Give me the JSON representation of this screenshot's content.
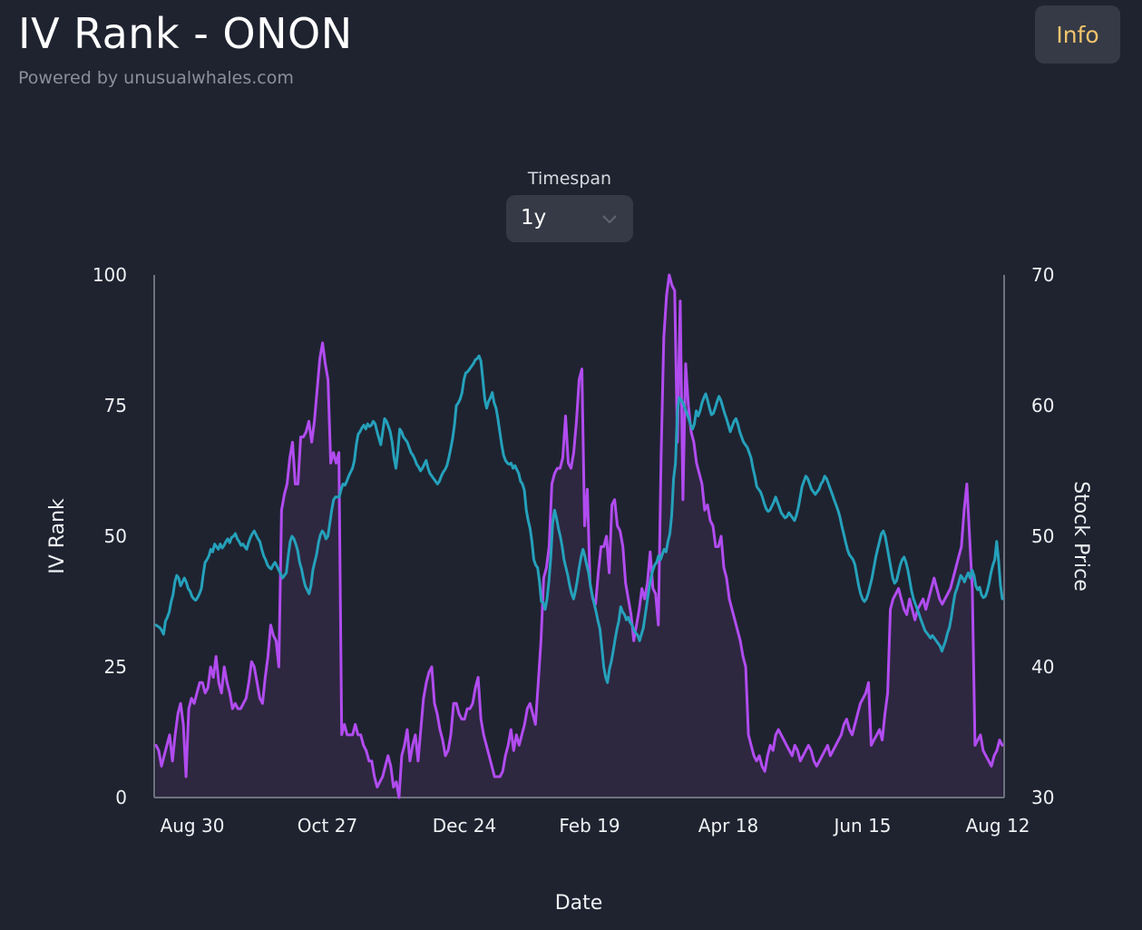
{
  "header": {
    "title": "IV Rank - ONON",
    "subtitle": "Powered by unusualwhales.com",
    "info_label": "Info"
  },
  "controls": {
    "timespan_label": "Timespan",
    "timespan_value": "1y",
    "timespan_icon": "chevron-down-icon"
  },
  "colors": {
    "background": "#1f2330",
    "iv_rank_line": "#b14cf0",
    "iv_rank_fill": "#2e2740",
    "stock_price_line": "#25a1bb",
    "info_text": "#f2c46d"
  },
  "chart_data": {
    "type": "line",
    "xlabel": "Date",
    "ylabel": "IV Rank",
    "y2label": "Stock Price",
    "ylim": [
      0,
      100
    ],
    "y2lim": [
      30,
      70
    ],
    "yticks": [
      "100",
      "75",
      "50",
      "25",
      "0"
    ],
    "y2ticks": [
      "70",
      "60",
      "50",
      "40",
      "30"
    ],
    "xticks": [
      "Aug 30",
      "Oct 27",
      "Dec 24",
      "Feb 19",
      "Apr 18",
      "Jun 15",
      "Aug 12"
    ],
    "grid": false,
    "series": [
      {
        "axis": "left",
        "color": "#b14cf0",
        "fill": true,
        "values": [
          10,
          9,
          6,
          8,
          10,
          12,
          7,
          12,
          16,
          18,
          14,
          4,
          17,
          19,
          18,
          20,
          22,
          22,
          20,
          21,
          25,
          23,
          27,
          22,
          20,
          25,
          22,
          20,
          17,
          18,
          17,
          17,
          18,
          19,
          22,
          26,
          25,
          22,
          19,
          18,
          23,
          27,
          33,
          31,
          30,
          25,
          55,
          58,
          60,
          65,
          68,
          60,
          60,
          69,
          69,
          70,
          72,
          68,
          72,
          78,
          84,
          87,
          83,
          80,
          64,
          66,
          64,
          66,
          12,
          14,
          12,
          12,
          12,
          14,
          12,
          12,
          10,
          9,
          7,
          7,
          4,
          2,
          3,
          4,
          6,
          8,
          6,
          2,
          3,
          0,
          8,
          10,
          13,
          7,
          10,
          12,
          7,
          13,
          19,
          22,
          24,
          25,
          18,
          16,
          13,
          11,
          8,
          9,
          12,
          18,
          18,
          16,
          15,
          15,
          17,
          17,
          18,
          21,
          23,
          15,
          12,
          10,
          8,
          6,
          4,
          4,
          4,
          5,
          8,
          10,
          13,
          9,
          12,
          10,
          12,
          14,
          17,
          18,
          16,
          14,
          22,
          30,
          42,
          44,
          48,
          60,
          62,
          63,
          63,
          65,
          73,
          64,
          63,
          66,
          72,
          80,
          82,
          52,
          59,
          41,
          38,
          37,
          43,
          48,
          48,
          50,
          43,
          56,
          57,
          52,
          51,
          48,
          41,
          38,
          35,
          30,
          33,
          36,
          40,
          38,
          41,
          47,
          40,
          39,
          33,
          65,
          88,
          96,
          100,
          98,
          97,
          68,
          95,
          57,
          83,
          75,
          70,
          68,
          64,
          62,
          60,
          55,
          56,
          53,
          52,
          48,
          48,
          50,
          44,
          42,
          38,
          36,
          34,
          32,
          30,
          27,
          25,
          12,
          10,
          8,
          7,
          8,
          6,
          5,
          8,
          10,
          9,
          12,
          13,
          12,
          11,
          10,
          9,
          8,
          10,
          9,
          7,
          8,
          9,
          10,
          9,
          7,
          6,
          7,
          8,
          9,
          10,
          8,
          9,
          10,
          11,
          12,
          14,
          15,
          13,
          12,
          14,
          16,
          18,
          19,
          20,
          22,
          10,
          11,
          12,
          13,
          11,
          16,
          20,
          36,
          38,
          39,
          40,
          38,
          36,
          35,
          38,
          36,
          34,
          36,
          37,
          38,
          36,
          38,
          40,
          42,
          40,
          38,
          37,
          38,
          39,
          40,
          42,
          44,
          46,
          48,
          55,
          60,
          50,
          40,
          10,
          11,
          12,
          9,
          8,
          7,
          6,
          8,
          9,
          11,
          10
        ]
      },
      {
        "axis": "right",
        "color": "#25a1bb",
        "fill": false,
        "values": [
          43.2,
          43.1,
          43.0,
          42.8,
          42.5,
          43.5,
          43.8,
          44.2,
          45.0,
          45.5,
          46.5,
          47.0,
          46.8,
          46.2,
          46.5,
          46.8,
          46.5,
          46.0,
          45.8,
          45.4,
          45.2,
          45.1,
          45.3,
          45.6,
          46.0,
          47.1,
          48.0,
          48.2,
          48.5,
          49.0,
          48.8,
          49.4,
          49.2,
          49.0,
          49.4,
          49.1,
          49.3,
          49.6,
          49.8,
          49.5,
          49.9,
          50.0,
          50.2,
          49.8,
          49.6,
          49.3,
          49.4,
          49.2,
          49.0,
          49.5,
          49.9,
          50.2,
          50.4,
          50.1,
          49.8,
          49.6,
          49.0,
          48.5,
          48.2,
          47.8,
          47.6,
          47.5,
          47.8,
          48.0,
          47.7,
          47.4,
          47.1,
          46.8,
          47.0,
          47.2,
          48.5,
          49.6,
          50.0,
          49.8,
          49.4,
          48.9,
          48.0,
          47.5,
          46.8,
          46.2,
          45.9,
          45.6,
          46.2,
          47.4,
          48.0,
          48.6,
          49.5,
          50.1,
          50.4,
          50.2,
          49.8,
          50.0,
          51.0,
          52.0,
          52.8,
          53.0,
          53.0,
          53.0,
          53.6,
          54.0,
          53.9,
          54.2,
          54.6,
          54.9,
          55.2,
          55.8,
          57.0,
          57.8,
          58.0,
          58.3,
          58.5,
          58.2,
          58.6,
          58.4,
          58.5,
          58.8,
          58.6,
          58.0,
          57.5,
          57.0,
          58.0,
          59.0,
          58.8,
          58.4,
          58.0,
          57.2,
          56.0,
          55.2,
          56.5,
          58.2,
          58.0,
          57.6,
          57.4,
          57.2,
          56.8,
          56.4,
          56.2,
          55.9,
          55.5,
          55.3,
          55.0,
          55.2,
          55.5,
          55.8,
          55.2,
          54.8,
          54.6,
          54.4,
          54.2,
          54.0,
          54.2,
          54.6,
          54.9,
          55.1,
          55.4,
          56.0,
          56.7,
          57.5,
          58.5,
          60.0,
          60.2,
          60.5,
          61.0,
          62.0,
          62.5,
          62.6,
          62.8,
          63.0,
          63.2,
          63.5,
          63.6,
          63.8,
          63.4,
          62.0,
          60.5,
          59.8,
          60.3,
          60.6,
          61.0,
          60.2,
          59.8,
          59.0,
          58.0,
          57.0,
          56.2,
          55.8,
          55.6,
          55.5,
          55.6,
          55.2,
          55.4,
          55.1,
          54.8,
          54.2,
          54.0,
          53.5,
          52.0,
          51.2,
          50.6,
          49.6,
          48.2,
          47.8,
          47.6,
          46.5,
          45.0,
          44.9,
          44.4,
          45.2,
          46.6,
          48.5,
          51.0,
          52.0,
          51.4,
          50.6,
          50.0,
          49.2,
          48.2,
          47.6,
          47.0,
          46.2,
          45.6,
          45.2,
          45.8,
          46.6,
          47.6,
          48.4,
          49.0,
          48.5,
          47.8,
          47.2,
          46.2,
          45.4,
          44.8,
          44.2,
          43.5,
          42.9,
          41.5,
          40.0,
          39.2,
          38.8,
          39.8,
          40.4,
          41.2,
          42.1,
          42.9,
          43.5,
          44.6,
          44.2,
          44.0,
          43.6,
          43.8,
          43.4,
          43.2,
          42.8,
          42.6,
          42.4,
          42.0,
          42.5,
          43.0,
          44.0,
          45.0,
          46.0,
          46.8,
          47.4,
          47.8,
          48.0,
          48.5,
          48.2,
          48.6,
          49.0,
          48.8,
          49.6,
          50.2,
          51.6,
          54.4,
          55.6,
          59.6,
          60.6,
          60.4,
          60.2,
          59.8,
          59.4,
          59.0,
          58.5,
          58.2,
          58.6,
          59.6,
          59.2,
          59.6,
          60.2,
          60.6,
          60.9,
          60.4,
          59.8,
          59.3,
          59.4,
          59.8,
          60.3,
          60.7,
          60.4,
          59.9,
          59.4,
          59.0,
          58.5,
          58.0,
          58.4,
          58.8,
          59.0,
          58.6,
          58.0,
          57.6,
          57.2,
          57.0,
          56.8,
          56.4,
          56.0,
          55.2,
          54.6,
          53.8,
          53.6,
          53.4,
          53.0,
          52.5,
          52.1,
          51.9,
          52.0,
          52.3,
          52.6,
          53.0,
          52.6,
          52.2,
          51.8,
          51.6,
          51.4,
          51.5,
          51.8,
          51.6,
          51.4,
          51.2,
          51.6,
          52.2,
          53.0,
          53.8,
          54.2,
          54.6,
          54.4,
          54.0,
          53.6,
          53.4,
          53.2,
          53.4,
          53.6,
          54.0,
          54.2,
          54.6,
          54.4,
          54.0,
          53.6,
          53.2,
          52.8,
          52.4,
          52.0,
          51.5,
          50.8,
          50.2,
          49.6,
          49.0,
          48.6,
          48.4,
          48.2,
          47.8,
          47.0,
          46.2,
          45.6,
          45.2,
          45.0,
          45.2,
          45.6,
          46.2,
          46.8,
          47.6,
          48.4,
          49.0,
          49.6,
          50.2,
          50.4,
          50.0,
          49.2,
          48.4,
          47.6,
          46.8,
          46.4,
          46.6,
          47.2,
          47.8,
          48.2,
          48.4,
          48.0,
          47.4,
          46.6,
          45.8,
          45.2,
          44.8,
          44.4,
          44.0,
          43.6,
          43.2,
          42.8,
          42.6,
          42.4,
          42.2,
          42.4,
          42.2,
          42.0,
          41.8,
          41.6,
          41.2,
          41.6,
          42.0,
          42.6,
          43.0,
          43.8,
          44.8,
          45.6,
          46.0,
          46.5,
          47.0,
          46.8,
          46.5,
          46.9,
          47.2,
          46.8,
          47.4,
          47.0,
          46.2,
          45.9,
          46.1,
          45.5,
          45.3,
          45.4,
          45.8,
          46.4,
          47.2,
          47.8,
          48.2,
          49.6,
          48.2,
          46.3,
          45.2
        ]
      }
    ]
  }
}
